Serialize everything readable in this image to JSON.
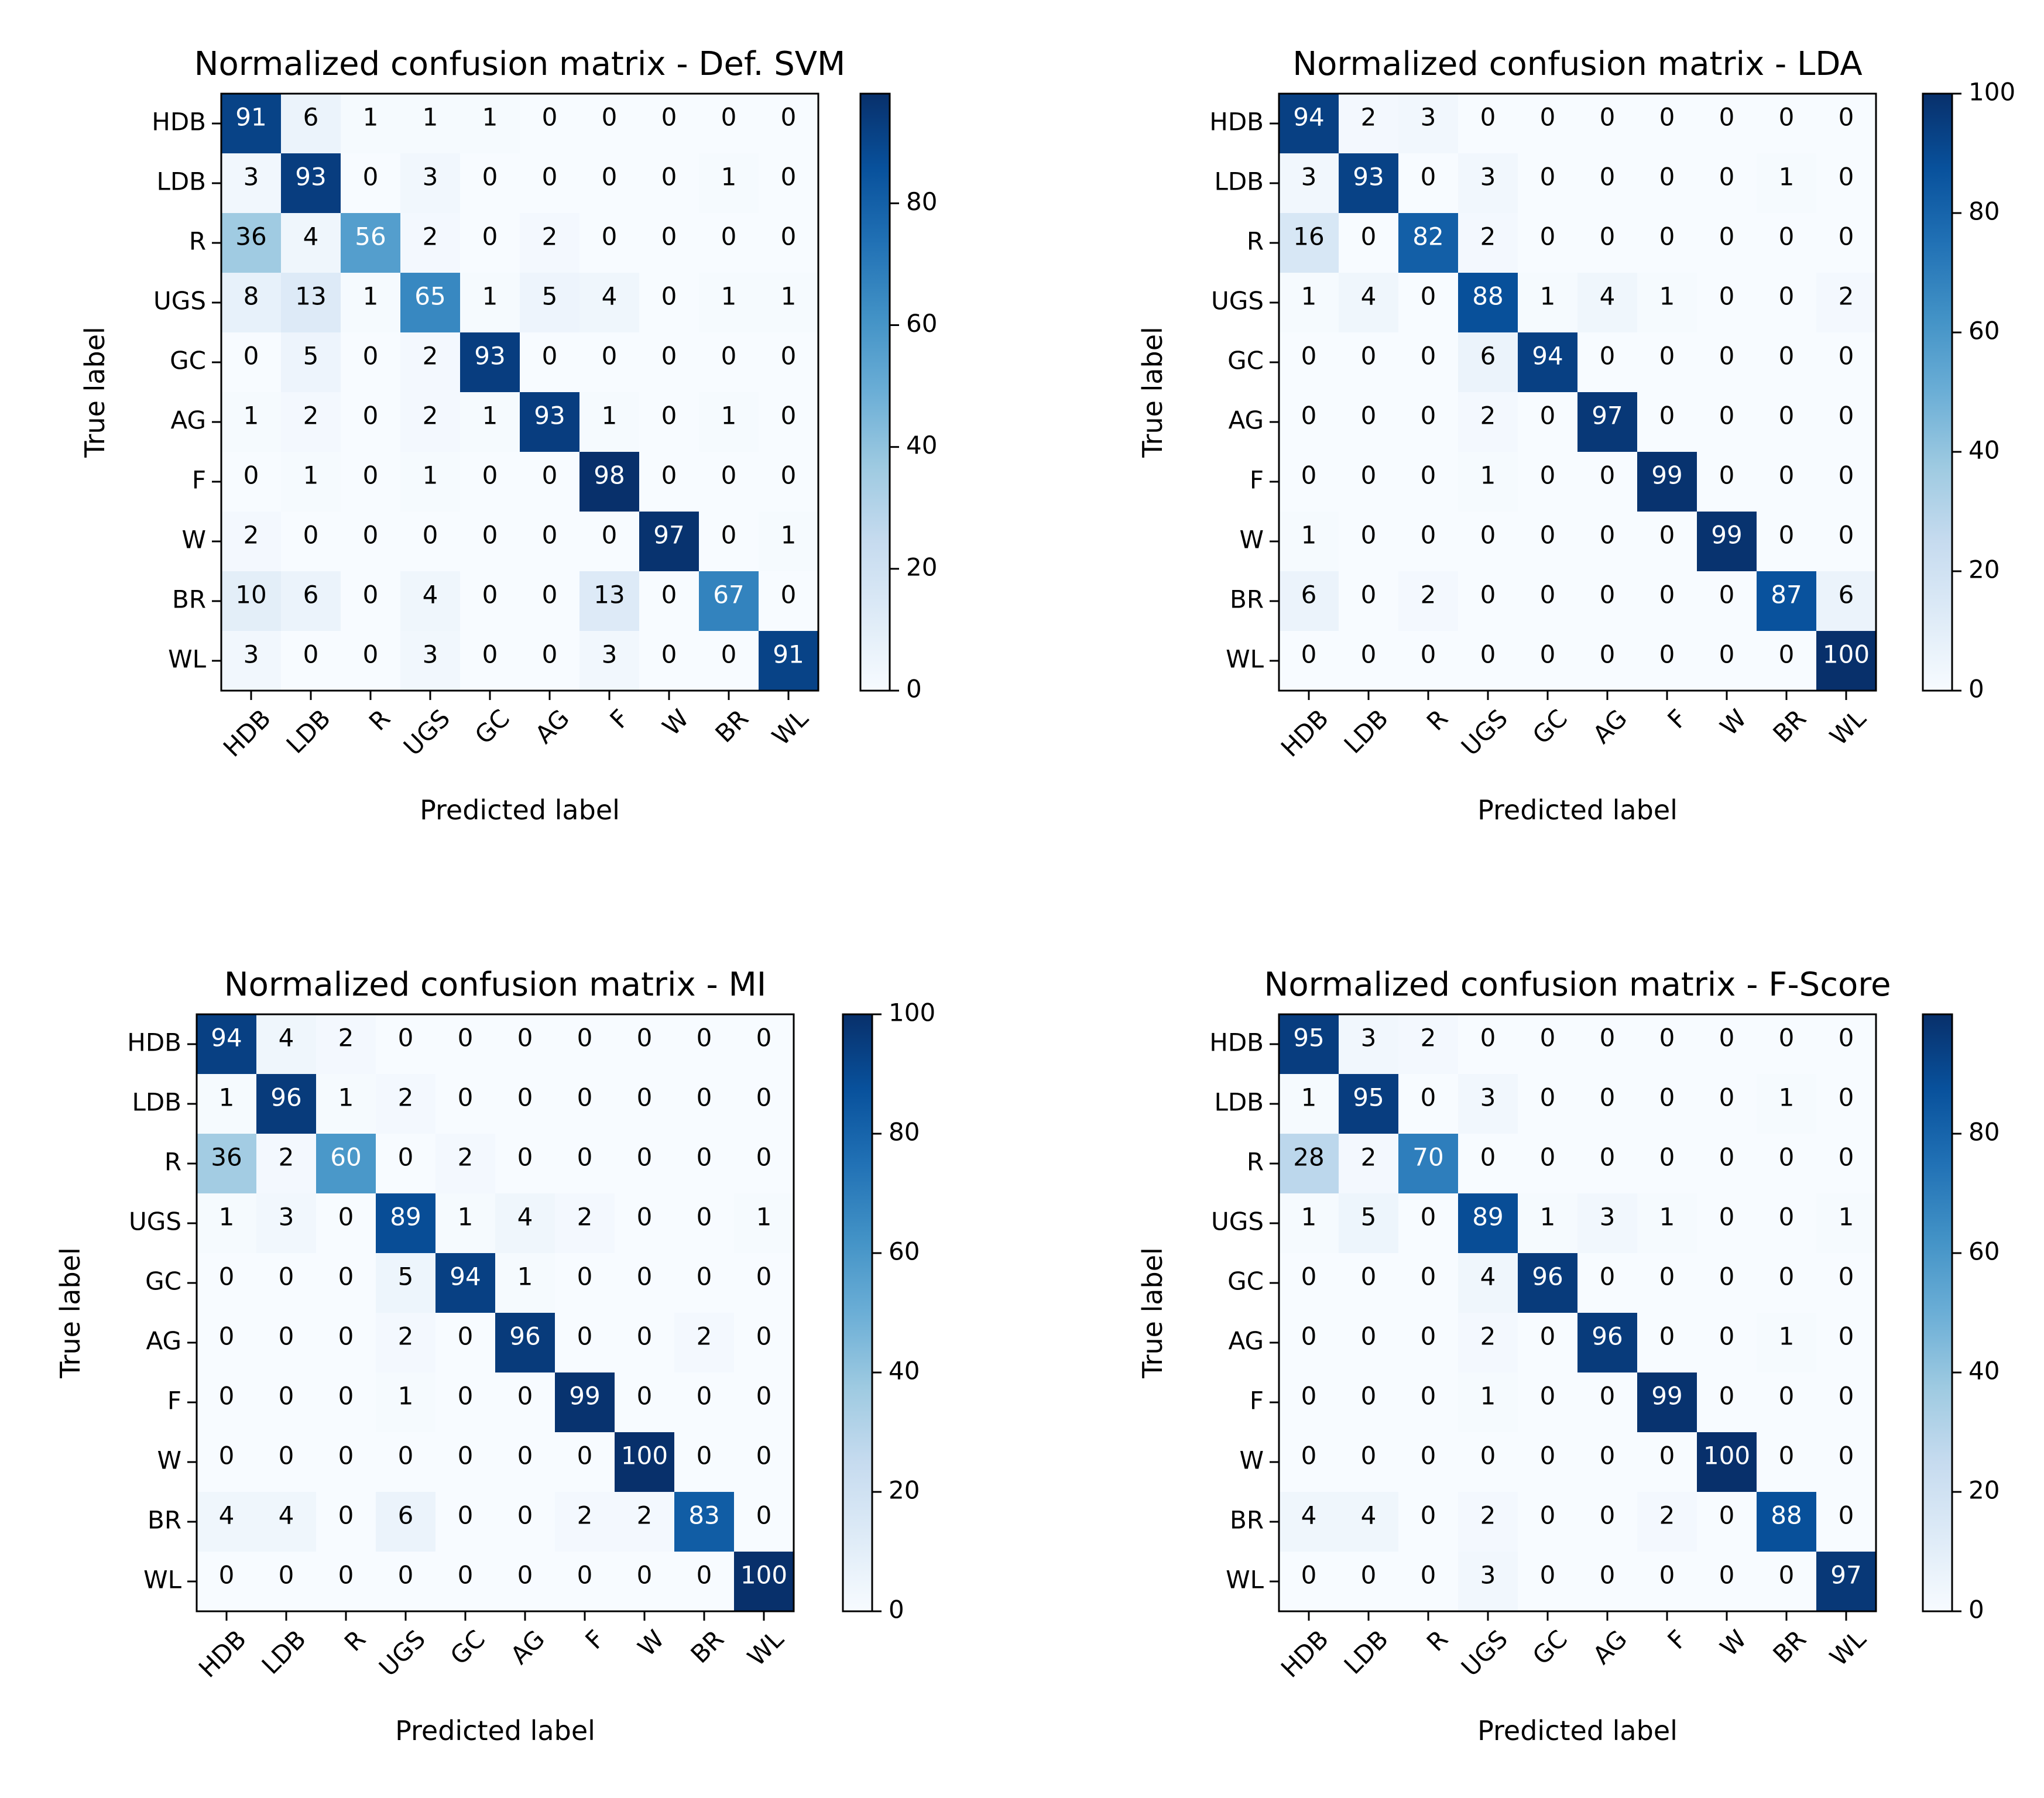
{
  "page": {
    "colormap": {
      "light": "#f7fbff",
      "mid": "#4292c6",
      "dark": "#08306b"
    },
    "text_light": "#ffffff",
    "text_dark": "#000000"
  },
  "chart_data": [
    {
      "type": "heatmap",
      "title": "Normalized confusion matrix - Def. SVM",
      "xlabel": "Predicted label",
      "ylabel": "True label",
      "labels": [
        "HDB",
        "LDB",
        "R",
        "UGS",
        "GC",
        "AG",
        "F",
        "W",
        "BR",
        "WL"
      ],
      "vmin": 0,
      "vmax": 98,
      "colorbar_ticks": [
        0,
        20,
        40,
        60,
        80
      ],
      "matrix": [
        [
          91,
          6,
          1,
          1,
          1,
          0,
          0,
          0,
          0,
          0
        ],
        [
          3,
          93,
          0,
          3,
          0,
          0,
          0,
          0,
          1,
          0
        ],
        [
          36,
          4,
          56,
          2,
          0,
          2,
          0,
          0,
          0,
          0
        ],
        [
          8,
          13,
          1,
          65,
          1,
          5,
          4,
          0,
          1,
          1
        ],
        [
          0,
          5,
          0,
          2,
          93,
          0,
          0,
          0,
          0,
          0
        ],
        [
          1,
          2,
          0,
          2,
          1,
          93,
          1,
          0,
          1,
          0
        ],
        [
          0,
          1,
          0,
          1,
          0,
          0,
          98,
          0,
          0,
          0
        ],
        [
          2,
          0,
          0,
          0,
          0,
          0,
          0,
          97,
          0,
          1
        ],
        [
          10,
          6,
          0,
          4,
          0,
          0,
          13,
          0,
          67,
          0
        ],
        [
          3,
          0,
          0,
          3,
          0,
          0,
          3,
          0,
          0,
          91
        ]
      ]
    },
    {
      "type": "heatmap",
      "title": "Normalized confusion matrix - LDA",
      "xlabel": "Predicted label",
      "ylabel": "True label",
      "labels": [
        "HDB",
        "LDB",
        "R",
        "UGS",
        "GC",
        "AG",
        "F",
        "W",
        "BR",
        "WL"
      ],
      "vmin": 0,
      "vmax": 100,
      "colorbar_ticks": [
        0,
        20,
        40,
        60,
        80,
        100
      ],
      "matrix": [
        [
          94,
          2,
          3,
          0,
          0,
          0,
          0,
          0,
          0,
          0
        ],
        [
          3,
          93,
          0,
          3,
          0,
          0,
          0,
          0,
          1,
          0
        ],
        [
          16,
          0,
          82,
          2,
          0,
          0,
          0,
          0,
          0,
          0
        ],
        [
          1,
          4,
          0,
          88,
          1,
          4,
          1,
          0,
          0,
          2
        ],
        [
          0,
          0,
          0,
          6,
          94,
          0,
          0,
          0,
          0,
          0
        ],
        [
          0,
          0,
          0,
          2,
          0,
          97,
          0,
          0,
          0,
          0
        ],
        [
          0,
          0,
          0,
          1,
          0,
          0,
          99,
          0,
          0,
          0
        ],
        [
          1,
          0,
          0,
          0,
          0,
          0,
          0,
          99,
          0,
          0
        ],
        [
          6,
          0,
          2,
          0,
          0,
          0,
          0,
          0,
          87,
          6
        ],
        [
          0,
          0,
          0,
          0,
          0,
          0,
          0,
          0,
          0,
          100
        ]
      ]
    },
    {
      "type": "heatmap",
      "title": "Normalized confusion matrix - MI",
      "xlabel": "Predicted label",
      "ylabel": "True label",
      "labels": [
        "HDB",
        "LDB",
        "R",
        "UGS",
        "GC",
        "AG",
        "F",
        "W",
        "BR",
        "WL"
      ],
      "vmin": 0,
      "vmax": 100,
      "colorbar_ticks": [
        0,
        20,
        40,
        60,
        80,
        100
      ],
      "matrix": [
        [
          94,
          4,
          2,
          0,
          0,
          0,
          0,
          0,
          0,
          0
        ],
        [
          1,
          96,
          1,
          2,
          0,
          0,
          0,
          0,
          0,
          0
        ],
        [
          36,
          2,
          60,
          0,
          2,
          0,
          0,
          0,
          0,
          0
        ],
        [
          1,
          3,
          0,
          89,
          1,
          4,
          2,
          0,
          0,
          1
        ],
        [
          0,
          0,
          0,
          5,
          94,
          1,
          0,
          0,
          0,
          0
        ],
        [
          0,
          0,
          0,
          2,
          0,
          96,
          0,
          0,
          2,
          0
        ],
        [
          0,
          0,
          0,
          1,
          0,
          0,
          99,
          0,
          0,
          0
        ],
        [
          0,
          0,
          0,
          0,
          0,
          0,
          0,
          100,
          0,
          0
        ],
        [
          4,
          4,
          0,
          6,
          0,
          0,
          2,
          2,
          83,
          0
        ],
        [
          0,
          0,
          0,
          0,
          0,
          0,
          0,
          0,
          0,
          100
        ]
      ]
    },
    {
      "type": "heatmap",
      "title": "Normalized confusion matrix - F-Score",
      "xlabel": "Predicted label",
      "ylabel": "True label",
      "labels": [
        "HDB",
        "LDB",
        "R",
        "UGS",
        "GC",
        "AG",
        "F",
        "W",
        "BR",
        "WL"
      ],
      "vmin": 0,
      "vmax": 100,
      "colorbar_ticks": [
        0,
        20,
        40,
        60,
        80
      ],
      "matrix": [
        [
          95,
          3,
          2,
          0,
          0,
          0,
          0,
          0,
          0,
          0
        ],
        [
          1,
          95,
          0,
          3,
          0,
          0,
          0,
          0,
          1,
          0
        ],
        [
          28,
          2,
          70,
          0,
          0,
          0,
          0,
          0,
          0,
          0
        ],
        [
          1,
          5,
          0,
          89,
          1,
          3,
          1,
          0,
          0,
          1
        ],
        [
          0,
          0,
          0,
          4,
          96,
          0,
          0,
          0,
          0,
          0
        ],
        [
          0,
          0,
          0,
          2,
          0,
          96,
          0,
          0,
          1,
          0
        ],
        [
          0,
          0,
          0,
          1,
          0,
          0,
          99,
          0,
          0,
          0
        ],
        [
          0,
          0,
          0,
          0,
          0,
          0,
          0,
          100,
          0,
          0
        ],
        [
          4,
          4,
          0,
          2,
          0,
          0,
          2,
          0,
          88,
          0
        ],
        [
          0,
          0,
          0,
          3,
          0,
          0,
          0,
          0,
          0,
          97
        ]
      ]
    }
  ]
}
